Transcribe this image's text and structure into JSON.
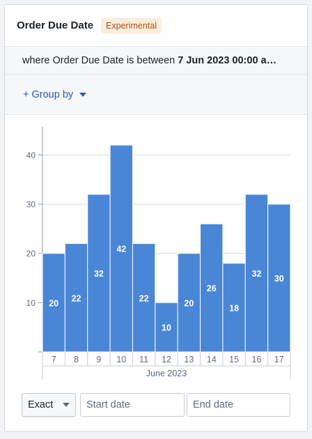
{
  "widget": {
    "title": "Order Due Date",
    "badge": "Experimental",
    "filter_prefix": "where Order Due Date is between",
    "filter_value": "7 Jun 2023 00:00 a…",
    "group_by_label": "+ Group by",
    "bucket_select": "Exact",
    "start_placeholder": "Start date",
    "end_placeholder": "End date"
  },
  "colors": {
    "bar": "#4a86d6",
    "bar_stroke": "#ffffff",
    "accent": "#215db0",
    "badge_bg": "#fbecdc",
    "badge_text": "#a4531f"
  },
  "chart_data": {
    "type": "bar",
    "categories": [
      "7",
      "8",
      "9",
      "10",
      "11",
      "12",
      "13",
      "14",
      "15",
      "16",
      "17"
    ],
    "values": [
      20,
      22,
      32,
      42,
      22,
      10,
      20,
      26,
      18,
      32,
      30
    ],
    "group_label": "June 2023",
    "ylim": [
      0,
      45
    ],
    "yticks": [
      10,
      20,
      30,
      40
    ],
    "grid": true,
    "legend": "none"
  }
}
